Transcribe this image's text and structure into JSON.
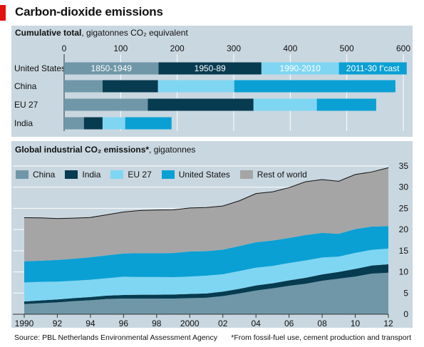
{
  "header": {
    "title": "Carbon-dioxide emissions"
  },
  "colors": {
    "china": "#6f97a8",
    "india": "#073b50",
    "eu": "#7fd6f2",
    "us": "#0aa0d4",
    "row": "#a5a5a5",
    "p1850": "#6f97a8",
    "p1950": "#073b50",
    "p1990": "#7fd6f2",
    "p2011": "#0aa0d4"
  },
  "footer": {
    "source": "Source: PBL Netherlands Environmental Assessment Agency",
    "note": "*From fossil-fuel use, cement production and transport"
  },
  "chart_data": [
    {
      "type": "bar",
      "orientation": "horizontal",
      "stacked": true,
      "title": "Cumulative total",
      "subtitle_unit": ", gigatonnes CO₂ equivalent",
      "xlim": [
        0,
        600
      ],
      "xticks": [
        "0",
        "100",
        "200",
        "300",
        "400",
        "500",
        "600"
      ],
      "grid": true,
      "categories": [
        "United States",
        "China",
        "EU 27",
        "India"
      ],
      "series": [
        {
          "name": "1850-1949",
          "values": [
            167,
            68,
            148,
            35
          ]
        },
        {
          "name": "1950-89",
          "values": [
            182,
            98,
            187,
            33
          ]
        },
        {
          "name": "1990-2010",
          "values": [
            137,
            135,
            112,
            40
          ]
        },
        {
          "name": "2011-30 f’cast",
          "values": [
            120,
            285,
            105,
            82
          ]
        }
      ],
      "segment_labels_in": "United States"
    },
    {
      "type": "area",
      "stacked": true,
      "title": "Global industrial CO₂ emissions*",
      "subtitle_unit": ", gigatonnes",
      "ylim": [
        0,
        35
      ],
      "yticks": [
        "0",
        "5",
        "10",
        "15",
        "20",
        "25",
        "30",
        "35"
      ],
      "x": [
        1990,
        1991,
        1992,
        1993,
        1994,
        1995,
        1996,
        1997,
        1998,
        1999,
        2000,
        2001,
        2002,
        2003,
        2004,
        2005,
        2006,
        2007,
        2008,
        2009,
        2010,
        2011,
        2012
      ],
      "xticks": [
        "1990",
        "92",
        "94",
        "96",
        "98",
        "2000",
        "02",
        "04",
        "06",
        "08",
        "10",
        "12"
      ],
      "legend_position": "top-left",
      "series": [
        {
          "name": "China",
          "values": [
            2.4,
            2.6,
            2.8,
            3.1,
            3.3,
            3.6,
            3.7,
            3.7,
            3.7,
            3.7,
            3.8,
            3.9,
            4.3,
            4.9,
            5.6,
            6.1,
            6.7,
            7.2,
            7.9,
            8.4,
            8.9,
            9.6,
            9.8
          ]
        },
        {
          "name": "India",
          "values": [
            0.6,
            0.65,
            0.7,
            0.7,
            0.75,
            0.8,
            0.85,
            0.9,
            0.9,
            0.95,
            1.0,
            1.0,
            1.05,
            1.1,
            1.2,
            1.2,
            1.3,
            1.4,
            1.5,
            1.6,
            1.8,
            1.9,
            2.0
          ]
        },
        {
          "name": "EU 27",
          "values": [
            4.5,
            4.4,
            4.2,
            4.1,
            4.1,
            4.1,
            4.3,
            4.2,
            4.2,
            4.1,
            4.1,
            4.2,
            4.1,
            4.2,
            4.2,
            4.1,
            4.1,
            4.1,
            4.0,
            3.6,
            3.8,
            3.7,
            3.7
          ]
        },
        {
          "name": "United States",
          "values": [
            5.0,
            5.0,
            5.1,
            5.2,
            5.3,
            5.4,
            5.5,
            5.6,
            5.6,
            5.7,
            5.9,
            5.8,
            5.8,
            5.9,
            6.0,
            6.0,
            5.9,
            6.0,
            5.8,
            5.4,
            5.6,
            5.5,
            5.3
          ]
        },
        {
          "name": "Rest of world",
          "values": [
            10.3,
            10.1,
            9.8,
            9.6,
            9.4,
            9.6,
            9.8,
            10.1,
            10.2,
            10.2,
            10.3,
            10.3,
            10.3,
            10.7,
            11.5,
            11.5,
            11.9,
            12.6,
            12.6,
            12.4,
            12.9,
            12.9,
            13.8
          ]
        }
      ]
    }
  ]
}
